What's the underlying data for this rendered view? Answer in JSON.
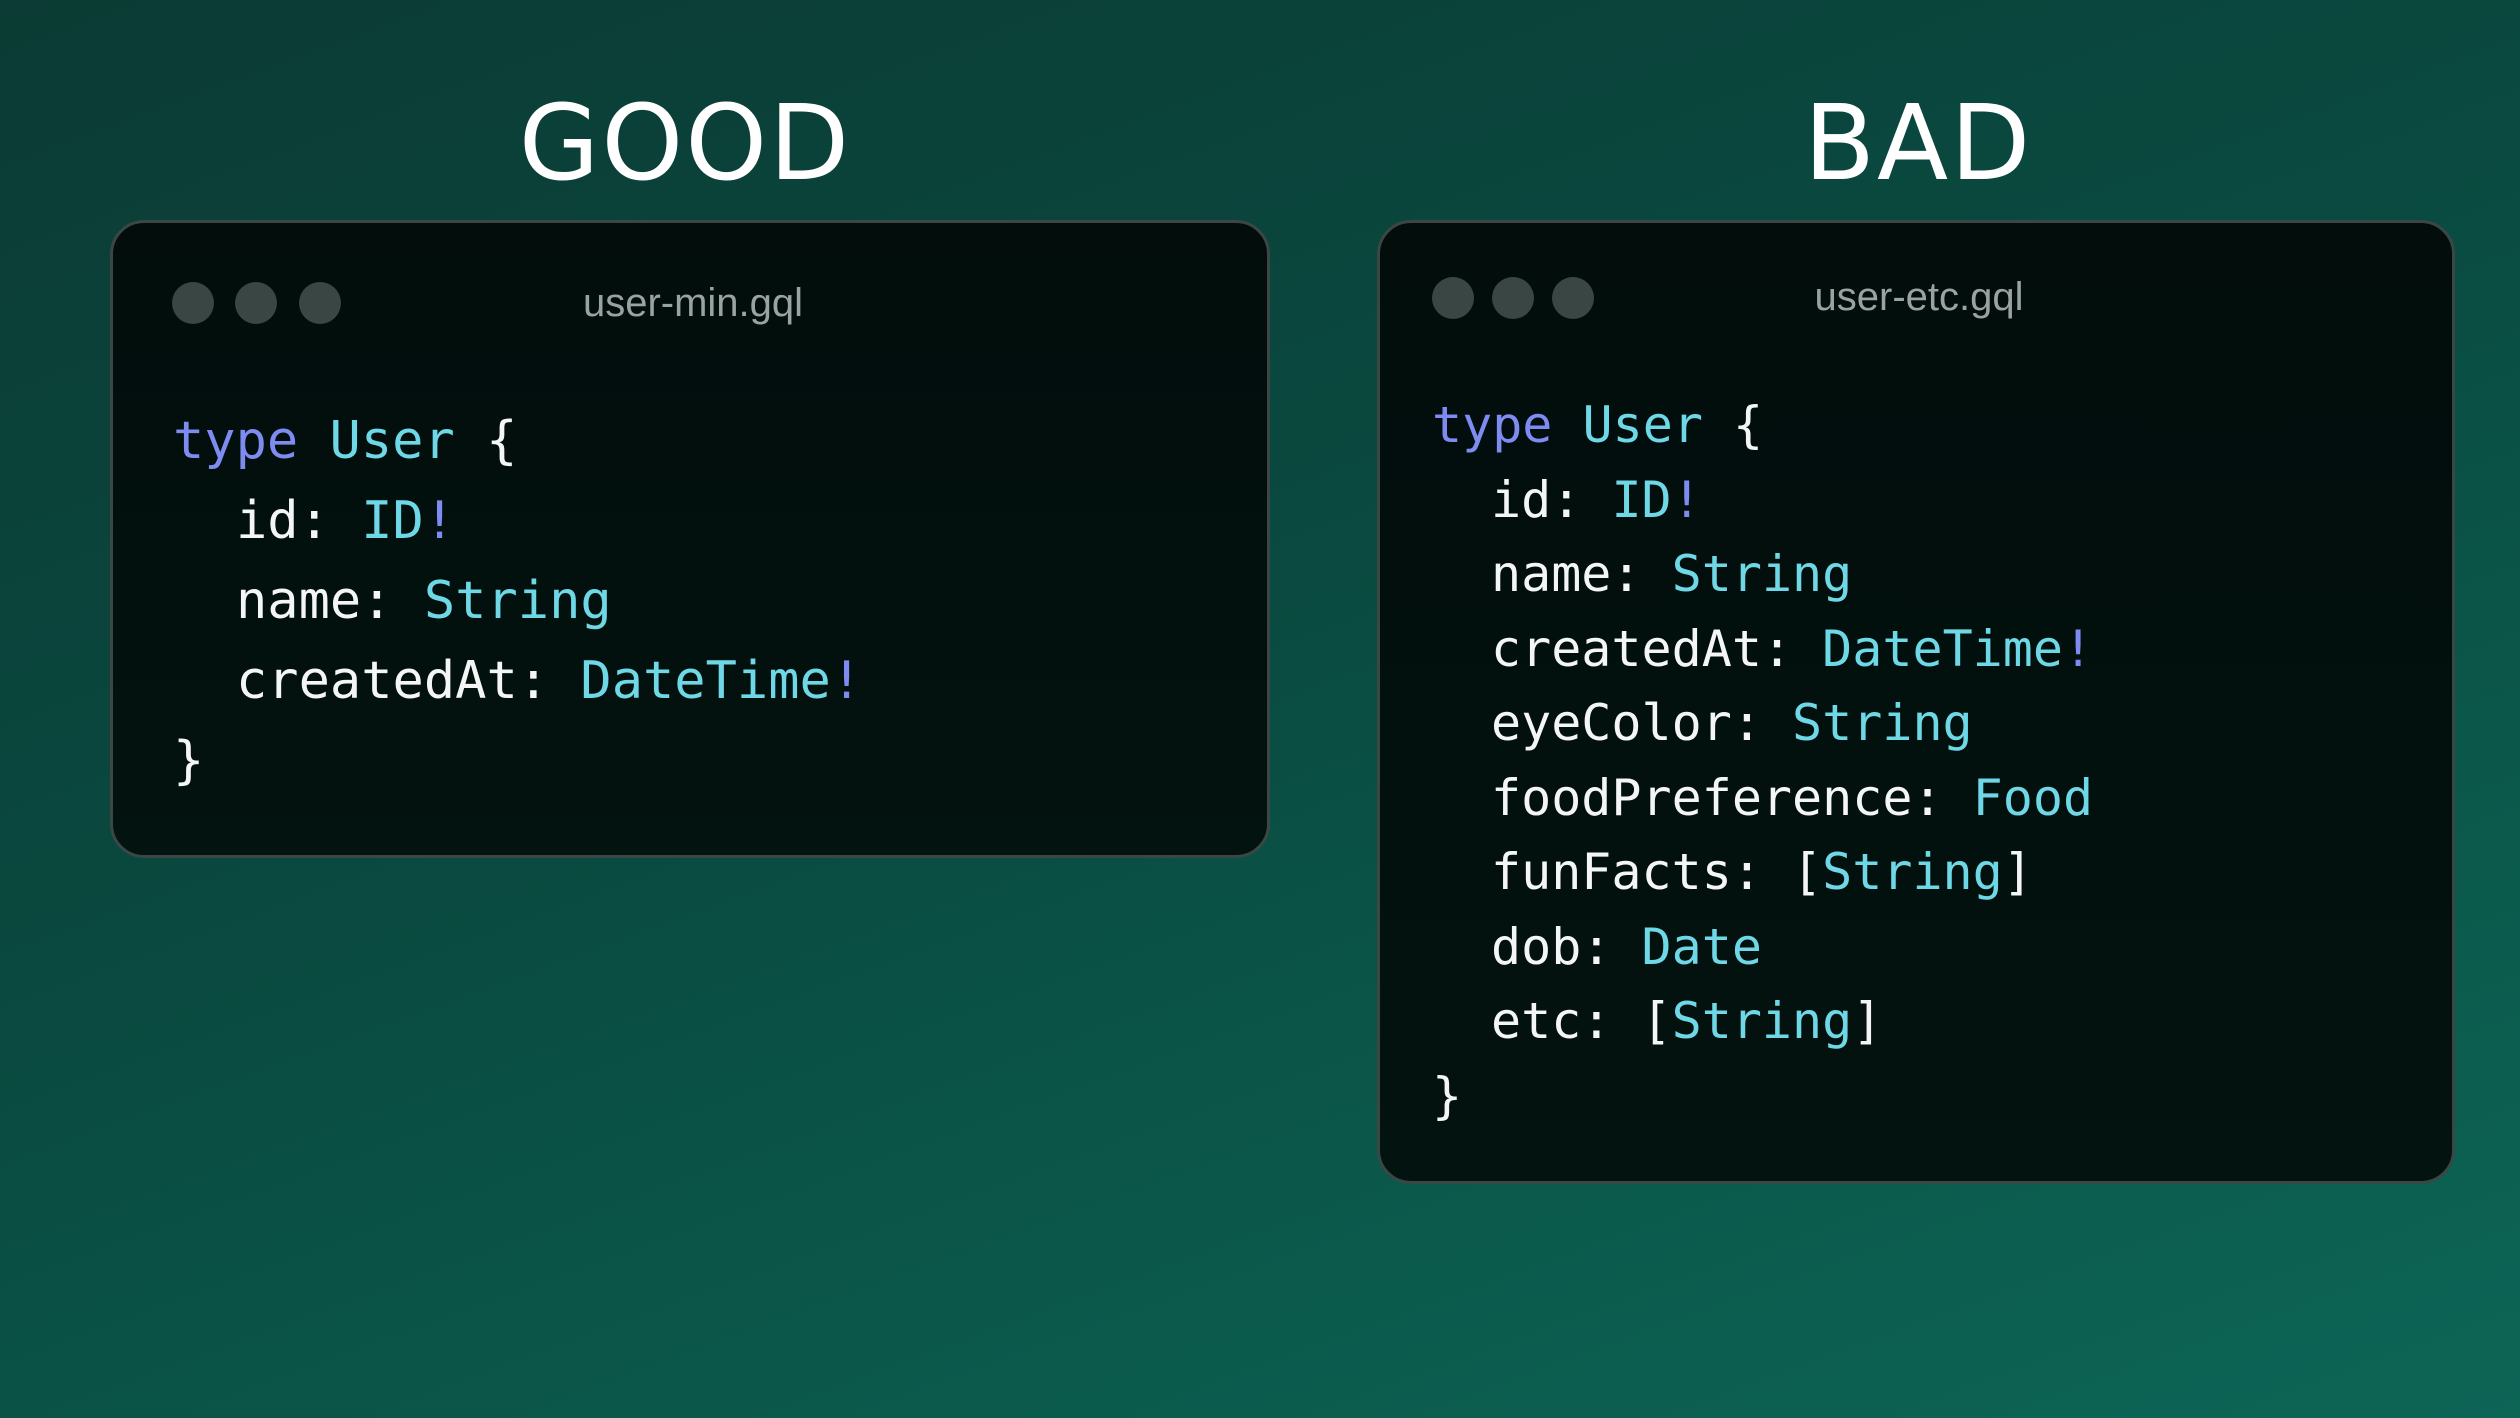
{
  "headings": {
    "good": "GOOD",
    "bad": "BAD"
  },
  "colors": {
    "keyword": "#7e8cf2",
    "type": "#6fd8e6",
    "text": "#f4f6f6",
    "window_bg": "#020d0c"
  },
  "good_window": {
    "filename": "user-min.gql",
    "lines": [
      {
        "indent": false,
        "name": "type",
        "sep": " ",
        "type": "User",
        "bang": "",
        "suffix": " {"
      },
      {
        "indent": true,
        "name": "id",
        "sep": ": ",
        "type": "ID",
        "bang": "!",
        "suffix": ""
      },
      {
        "indent": true,
        "name": "name",
        "sep": ": ",
        "type": "String",
        "bang": "",
        "suffix": ""
      },
      {
        "indent": true,
        "name": "createdAt",
        "sep": ": ",
        "type": "DateTime",
        "bang": "!",
        "suffix": ""
      },
      {
        "indent": false,
        "name": "}",
        "sep": "",
        "type": "",
        "bang": "",
        "suffix": ""
      }
    ]
  },
  "bad_window": {
    "filename": "user-etc.gql",
    "lines": [
      {
        "indent": false,
        "name": "type",
        "sep": " ",
        "type": "User",
        "bang": "",
        "suffix": " {"
      },
      {
        "indent": true,
        "name": "id",
        "sep": ": ",
        "type": "ID",
        "bang": "!",
        "suffix": ""
      },
      {
        "indent": true,
        "name": "name",
        "sep": ": ",
        "type": "String",
        "bang": "",
        "suffix": ""
      },
      {
        "indent": true,
        "name": "createdAt",
        "sep": ": ",
        "type": "DateTime",
        "bang": "!",
        "suffix": ""
      },
      {
        "indent": true,
        "name": "eyeColor",
        "sep": ": ",
        "type": "String",
        "bang": "",
        "suffix": ""
      },
      {
        "indent": true,
        "name": "foodPreference",
        "sep": ": ",
        "type": "Food",
        "bang": "",
        "suffix": ""
      },
      {
        "indent": true,
        "name": "funFacts",
        "sep": ": [",
        "type": "String",
        "bang": "",
        "suffix": "]"
      },
      {
        "indent": true,
        "name": "dob",
        "sep": ": ",
        "type": "Date",
        "bang": "",
        "suffix": ""
      },
      {
        "indent": true,
        "name": "etc",
        "sep": ": [",
        "type": "String",
        "bang": "",
        "suffix": "]"
      },
      {
        "indent": false,
        "name": "}",
        "sep": "",
        "type": "",
        "bang": "",
        "suffix": ""
      }
    ]
  }
}
